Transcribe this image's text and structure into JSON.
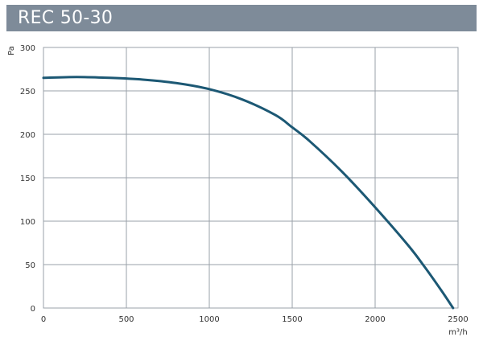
{
  "chart_data": {
    "type": "line",
    "title": "REC 50-30",
    "xlabel": "m³/h",
    "ylabel": "Pa",
    "xlim": [
      0,
      2500
    ],
    "ylim": [
      0,
      300
    ],
    "x_ticks": [
      0,
      500,
      1000,
      1500,
      2000,
      2500
    ],
    "y_ticks": [
      0,
      50,
      100,
      150,
      200,
      250,
      300
    ],
    "grid": true,
    "colors": {
      "curve": "#1c5874",
      "grid": "#9aa1a8",
      "title_bar": "#7e8b99"
    },
    "series": [
      {
        "x": [
          0,
          200,
          400,
          600,
          800,
          1000,
          1200,
          1400,
          1500,
          1600,
          1800,
          2000,
          2200,
          2300,
          2400,
          2470
        ],
        "values": [
          265,
          266,
          265,
          263,
          259,
          252,
          240,
          222,
          208,
          193,
          157,
          116,
          72,
          47,
          20,
          0
        ]
      }
    ]
  }
}
